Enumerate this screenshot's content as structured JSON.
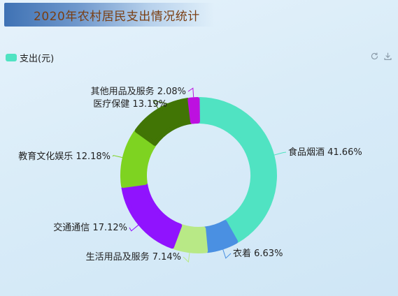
{
  "title": "2020年农村居民支出情况统计",
  "legend": {
    "label": "支出(元)",
    "color": "#50e3c2"
  },
  "toolbox": {
    "restore_icon": "refresh-icon",
    "save_icon": "download-icon"
  },
  "chart_data": {
    "type": "pie",
    "variant": "donut",
    "series": [
      {
        "name": "支出(元)",
        "slices": [
          {
            "label": "食品烟酒",
            "percent": 41.66,
            "color": "#50e3c2"
          },
          {
            "label": "衣着",
            "percent": 6.63,
            "color": "#4a90e2"
          },
          {
            "label": "生活用品及服务",
            "percent": 7.14,
            "color": "#b8e986"
          },
          {
            "label": "交通通信",
            "percent": 17.12,
            "color": "#9013fe"
          },
          {
            "label": "教育文化娱乐",
            "percent": 12.18,
            "color": "#7ed321"
          },
          {
            "label": "医疗保健",
            "percent": 13.19,
            "color": "#417505"
          },
          {
            "label": "其他用品及服务",
            "percent": 2.08,
            "color": "#bd10e0"
          }
        ]
      }
    ]
  }
}
